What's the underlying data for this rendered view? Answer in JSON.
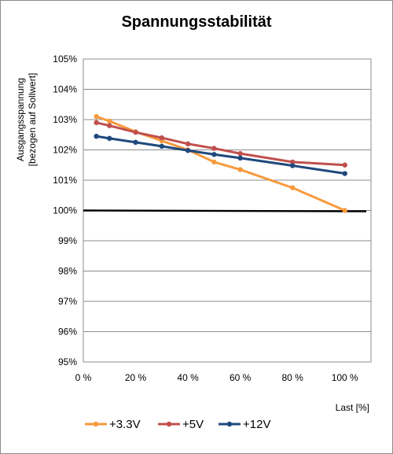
{
  "chart_data": {
    "type": "line",
    "title": "Spannungsstabilität",
    "ylabel_lines": [
      "Ausgangsspannung",
      "[bezogen auf Sollwert]"
    ],
    "xlabel": "Last [%]",
    "xlim": [
      0,
      110
    ],
    "ylim": [
      95,
      105
    ],
    "x_ticks": [
      0,
      20,
      40,
      60,
      80,
      100
    ],
    "x_tick_labels": [
      "0 %",
      "20 %",
      "40 %",
      "60 %",
      "80 %",
      "100 %"
    ],
    "y_ticks": [
      95,
      96,
      97,
      98,
      99,
      100,
      101,
      102,
      103,
      104,
      105
    ],
    "y_tick_labels": [
      "95%",
      "96%",
      "97%",
      "98%",
      "99%",
      "100%",
      "101%",
      "102%",
      "103%",
      "104%",
      "105%"
    ],
    "grid": "horizontal",
    "legend_position": "bottom",
    "reference_line": {
      "y": 100,
      "color": "#000000"
    },
    "series": [
      {
        "name": "+3.3V",
        "color": "#F79A3E",
        "x": [
          5,
          10,
          20,
          30,
          40,
          50,
          60,
          80,
          100
        ],
        "y": [
          103.1,
          102.95,
          102.6,
          102.3,
          102.0,
          101.6,
          101.35,
          100.75,
          100.0
        ]
      },
      {
        "name": "+5V",
        "color": "#C0504D",
        "x": [
          5,
          10,
          20,
          30,
          40,
          50,
          60,
          80,
          100
        ],
        "y": [
          102.9,
          102.8,
          102.58,
          102.4,
          102.2,
          102.05,
          101.88,
          101.6,
          101.5
        ]
      },
      {
        "name": "+12V",
        "color": "#1F497D",
        "x": [
          5,
          10,
          20,
          30,
          40,
          50,
          60,
          80,
          100
        ],
        "y": [
          102.45,
          102.38,
          102.25,
          102.12,
          101.98,
          101.85,
          101.73,
          101.48,
          101.22
        ]
      }
    ]
  }
}
